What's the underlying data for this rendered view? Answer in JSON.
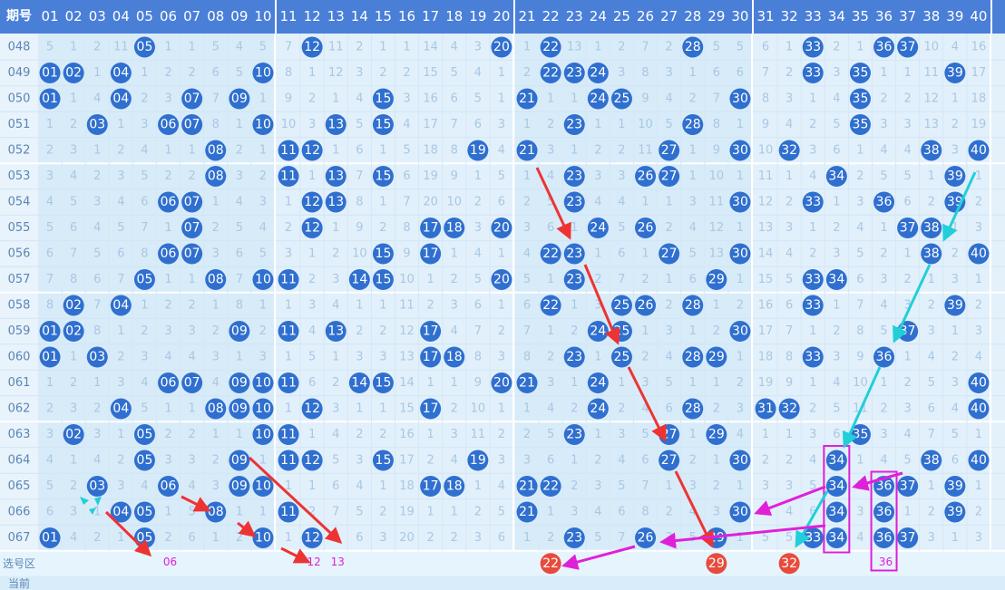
{
  "header": {
    "corner": "期号",
    "columns": [
      "01",
      "02",
      "03",
      "04",
      "05",
      "06",
      "07",
      "08",
      "09",
      "10",
      "11",
      "12",
      "13",
      "14",
      "15",
      "16",
      "17",
      "18",
      "19",
      "20",
      "21",
      "22",
      "23",
      "24",
      "25",
      "26",
      "27",
      "28",
      "29",
      "30",
      "31",
      "32",
      "33",
      "34",
      "35",
      "36",
      "37",
      "38",
      "39",
      "40"
    ]
  },
  "rows": [
    {
      "period": "048",
      "cells": [
        5,
        1,
        2,
        11,
        "05",
        1,
        1,
        5,
        4,
        5,
        7,
        "12",
        11,
        2,
        1,
        1,
        14,
        4,
        3,
        "20",
        1,
        "22",
        13,
        1,
        2,
        7,
        2,
        "28",
        5,
        5,
        6,
        1,
        "33",
        2,
        1,
        "36",
        "37",
        10,
        4,
        16
      ]
    },
    {
      "period": "049",
      "cells": [
        "01",
        "02",
        1,
        "04",
        1,
        2,
        2,
        6,
        5,
        "10",
        8,
        1,
        12,
        3,
        2,
        2,
        15,
        5,
        4,
        1,
        2,
        "22",
        "23",
        "24",
        3,
        8,
        3,
        1,
        6,
        6,
        7,
        2,
        "33",
        3,
        "35",
        1,
        1,
        11,
        "39",
        17
      ]
    },
    {
      "period": "050",
      "cells": [
        "01",
        1,
        4,
        "04",
        2,
        3,
        "07",
        7,
        "09",
        1,
        9,
        2,
        1,
        4,
        "15",
        3,
        16,
        6,
        5,
        1,
        "21",
        1,
        1,
        "24",
        "25",
        9,
        4,
        2,
        7,
        "30",
        8,
        3,
        1,
        4,
        "35",
        2,
        2,
        12,
        1,
        18
      ]
    },
    {
      "period": "051",
      "cells": [
        1,
        2,
        "03",
        1,
        3,
        "06",
        "07",
        8,
        1,
        "10",
        10,
        3,
        "13",
        5,
        "15",
        4,
        17,
        7,
        6,
        3,
        1,
        2,
        "23",
        1,
        1,
        10,
        5,
        "28",
        8,
        1,
        9,
        4,
        2,
        5,
        "35",
        3,
        3,
        13,
        2,
        19
      ]
    },
    {
      "period": "052",
      "cells": [
        2,
        3,
        1,
        2,
        4,
        1,
        1,
        "08",
        2,
        1,
        "11",
        "12",
        1,
        6,
        1,
        5,
        18,
        8,
        "19",
        4,
        "21",
        3,
        1,
        2,
        2,
        11,
        "27",
        1,
        9,
        "30",
        10,
        "32",
        3,
        6,
        1,
        4,
        4,
        "38",
        3,
        "40"
      ]
    },
    {
      "period": "053",
      "cells": [
        3,
        4,
        2,
        3,
        5,
        2,
        2,
        "08",
        3,
        2,
        "11",
        1,
        "13",
        7,
        "15",
        6,
        19,
        9,
        1,
        5,
        1,
        4,
        "23",
        3,
        3,
        "26",
        "27",
        1,
        10,
        1,
        11,
        1,
        4,
        "34",
        2,
        5,
        5,
        1,
        "39",
        1
      ]
    },
    {
      "period": "054",
      "cells": [
        4,
        5,
        3,
        4,
        6,
        "06",
        "07",
        1,
        4,
        3,
        1,
        "12",
        "13",
        8,
        1,
        7,
        20,
        10,
        2,
        6,
        2,
        5,
        "23",
        4,
        4,
        1,
        1,
        3,
        11,
        "30",
        12,
        2,
        "33",
        1,
        3,
        "36",
        6,
        2,
        "39",
        2
      ]
    },
    {
      "period": "055",
      "cells": [
        5,
        6,
        4,
        5,
        7,
        1,
        "07",
        2,
        5,
        4,
        2,
        "12",
        1,
        9,
        2,
        8,
        "17",
        "18",
        3,
        "20",
        3,
        6,
        1,
        "24",
        5,
        "26",
        2,
        4,
        12,
        1,
        13,
        3,
        1,
        2,
        4,
        1,
        "37",
        "38",
        1,
        3
      ]
    },
    {
      "period": "056",
      "cells": [
        6,
        7,
        5,
        6,
        8,
        "06",
        "07",
        3,
        6,
        5,
        3,
        1,
        2,
        10,
        "15",
        9,
        "17",
        1,
        4,
        1,
        4,
        "22",
        "23",
        1,
        6,
        1,
        "27",
        5,
        13,
        "30",
        14,
        4,
        2,
        3,
        5,
        2,
        1,
        "38",
        2,
        "40"
      ]
    },
    {
      "period": "057",
      "cells": [
        7,
        8,
        6,
        7,
        "05",
        1,
        1,
        "08",
        7,
        "10",
        "11",
        2,
        3,
        "14",
        "15",
        10,
        1,
        2,
        5,
        "20",
        5,
        1,
        "23",
        2,
        7,
        2,
        1,
        6,
        "29",
        1,
        15,
        5,
        "33",
        "34",
        6,
        3,
        2,
        1,
        3,
        1
      ]
    },
    {
      "period": "058",
      "cells": [
        8,
        "02",
        7,
        "04",
        1,
        2,
        2,
        1,
        8,
        1,
        1,
        3,
        4,
        1,
        1,
        11,
        2,
        3,
        6,
        1,
        6,
        "22",
        1,
        3,
        "25",
        "26",
        2,
        "28",
        1,
        2,
        16,
        6,
        "33",
        1,
        7,
        4,
        3,
        2,
        "39",
        2
      ]
    },
    {
      "period": "059",
      "cells": [
        "01",
        "02",
        8,
        1,
        2,
        3,
        3,
        2,
        "09",
        2,
        "11",
        4,
        "13",
        2,
        2,
        12,
        "17",
        4,
        7,
        2,
        7,
        1,
        2,
        "24",
        "25",
        1,
        3,
        1,
        2,
        "30",
        17,
        7,
        1,
        2,
        8,
        5,
        "37",
        3,
        1,
        3
      ]
    },
    {
      "period": "060",
      "cells": [
        "01",
        1,
        "03",
        2,
        3,
        4,
        4,
        3,
        1,
        3,
        1,
        5,
        1,
        3,
        3,
        13,
        "17",
        "18",
        8,
        3,
        8,
        2,
        "23",
        1,
        "25",
        2,
        4,
        "28",
        "29",
        1,
        18,
        8,
        "33",
        3,
        9,
        "36",
        1,
        4,
        2,
        4
      ]
    },
    {
      "period": "061",
      "cells": [
        1,
        2,
        1,
        3,
        4,
        "06",
        "07",
        4,
        "09",
        "10",
        "11",
        6,
        2,
        "14",
        "15",
        14,
        1,
        1,
        9,
        "20",
        "21",
        3,
        1,
        "24",
        1,
        3,
        5,
        1,
        1,
        2,
        19,
        9,
        1,
        4,
        10,
        1,
        2,
        5,
        3,
        "40"
      ]
    },
    {
      "period": "062",
      "cells": [
        2,
        3,
        2,
        "04",
        5,
        1,
        1,
        "08",
        "09",
        "10",
        1,
        "12",
        3,
        1,
        1,
        15,
        "17",
        2,
        10,
        1,
        1,
        4,
        2,
        "24",
        2,
        4,
        6,
        "28",
        2,
        3,
        "31",
        "32",
        2,
        5,
        11,
        2,
        3,
        6,
        4,
        "40"
      ]
    },
    {
      "period": "063",
      "cells": [
        3,
        "02",
        3,
        1,
        "05",
        2,
        2,
        1,
        1,
        "10",
        "11",
        1,
        4,
        2,
        2,
        16,
        1,
        3,
        11,
        2,
        2,
        5,
        "23",
        1,
        3,
        5,
        "27",
        1,
        "29",
        4,
        1,
        1,
        3,
        6,
        "35",
        3,
        4,
        7,
        5,
        1
      ]
    },
    {
      "period": "064",
      "cells": [
        4,
        1,
        4,
        2,
        "05",
        3,
        3,
        2,
        "09",
        1,
        "11",
        "12",
        5,
        3,
        "15",
        17,
        2,
        4,
        "19",
        3,
        3,
        6,
        1,
        2,
        4,
        6,
        "27",
        2,
        1,
        "30",
        2,
        2,
        4,
        "34",
        1,
        4,
        5,
        "38",
        6,
        "40"
      ]
    },
    {
      "period": "065",
      "cells": [
        5,
        2,
        "03",
        3,
        4,
        "06",
        4,
        3,
        "09",
        "10",
        1,
        1,
        6,
        4,
        1,
        18,
        "17",
        "18",
        1,
        4,
        "21",
        "22",
        2,
        3,
        5,
        7,
        1,
        3,
        2,
        1,
        3,
        3,
        5,
        "34",
        2,
        "36",
        "37",
        1,
        "39",
        1
      ]
    },
    {
      "period": "066",
      "cells": [
        6,
        3,
        1,
        "04",
        "05",
        1,
        5,
        "08",
        1,
        1,
        "11",
        2,
        7,
        5,
        2,
        19,
        1,
        1,
        2,
        5,
        "21",
        1,
        3,
        4,
        6,
        8,
        2,
        4,
        3,
        "30",
        4,
        4,
        6,
        "34",
        3,
        "36",
        1,
        2,
        "39",
        2
      ]
    },
    {
      "period": "067",
      "cells": [
        "01",
        4,
        2,
        1,
        "05",
        2,
        6,
        1,
        2,
        "10",
        1,
        "12",
        8,
        6,
        3,
        20,
        2,
        2,
        3,
        6,
        1,
        2,
        "23",
        5,
        7,
        "26",
        3,
        5,
        "29",
        1,
        5,
        5,
        "33",
        "34",
        4,
        "36",
        "37",
        3,
        1,
        3
      ]
    }
  ],
  "selection": {
    "label": "选号区",
    "picks": [
      "22",
      "29",
      "32"
    ],
    "notes": [
      "06",
      "12",
      "13",
      "36"
    ]
  },
  "current_label": "当前"
}
